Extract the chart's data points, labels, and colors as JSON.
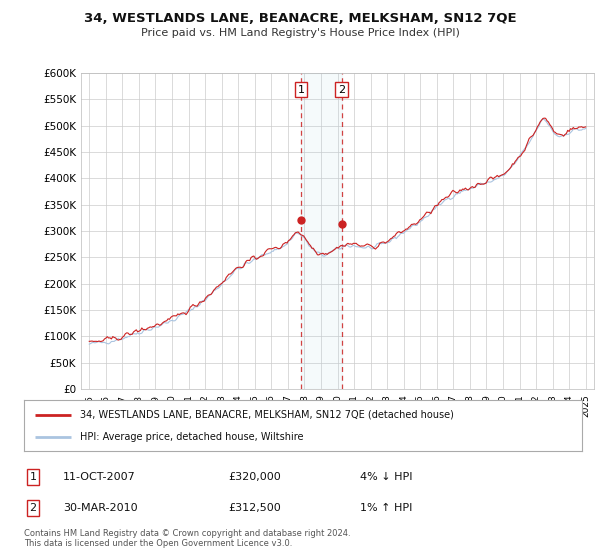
{
  "title": "34, WESTLANDS LANE, BEANACRE, MELKSHAM, SN12 7QE",
  "subtitle": "Price paid vs. HM Land Registry's House Price Index (HPI)",
  "legend_line1": "34, WESTLANDS LANE, BEANACRE, MELKSHAM, SN12 7QE (detached house)",
  "legend_line2": "HPI: Average price, detached house, Wiltshire",
  "annotation1_date": "11-OCT-2007",
  "annotation1_price": "£320,000",
  "annotation1_hpi": "4% ↓ HPI",
  "annotation2_date": "30-MAR-2010",
  "annotation2_price": "£312,500",
  "annotation2_hpi": "1% ↑ HPI",
  "footer": "Contains HM Land Registry data © Crown copyright and database right 2024.\nThis data is licensed under the Open Government Licence v3.0.",
  "sale1_year": 2007.79,
  "sale2_year": 2010.25,
  "sale1_value": 320000,
  "sale2_value": 312500,
  "ylim": [
    0,
    600000
  ],
  "yticks": [
    0,
    50000,
    100000,
    150000,
    200000,
    250000,
    300000,
    350000,
    400000,
    450000,
    500000,
    550000,
    600000
  ],
  "xlim_start": 1994.5,
  "xlim_end": 2025.5,
  "hpi_color": "#aac4e0",
  "price_color": "#cc2222",
  "background_color": "#ffffff",
  "plot_bg": "#ffffff",
  "grid_color": "#cccccc"
}
